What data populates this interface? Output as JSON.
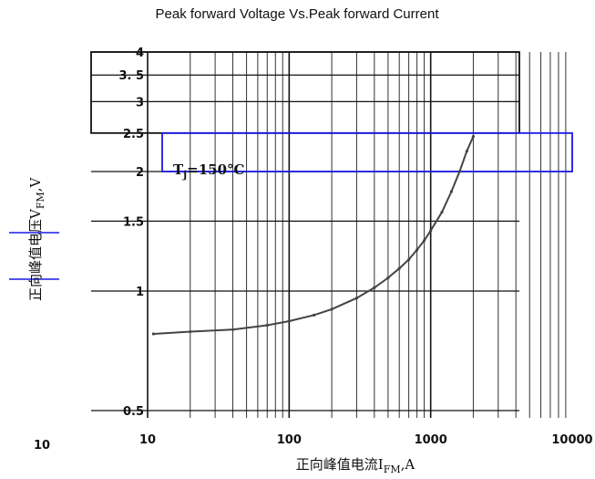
{
  "chart_data": {
    "type": "line",
    "title": "Peak forward Voltage Vs.Peak forward Current",
    "xlabel": "正向峰值电流I",
    "xlabel_sub": "FM",
    "xlabel_unit": ",A",
    "ylabel": "正向峰值电压V",
    "ylabel_sub": "FM",
    "ylabel_unit": ",V",
    "x_scale": "log",
    "y_scale": "log",
    "xlim": [
      10,
      10000
    ],
    "ylim": [
      0.5,
      4
    ],
    "x_ticks": [
      {
        "value": 10,
        "label": "10"
      },
      {
        "value": 100,
        "label": "100"
      },
      {
        "value": 1000,
        "label": "1000"
      },
      {
        "value": 10000,
        "label": "10000"
      }
    ],
    "x_tick_extra": {
      "label": "10"
    },
    "y_ticks": [
      {
        "value": 0.5,
        "label": "0.5"
      },
      {
        "value": 1,
        "label": "1"
      },
      {
        "value": 1.5,
        "label": "1.5"
      },
      {
        "value": 2,
        "label": "2"
      },
      {
        "value": 2.5,
        "label": "2.5"
      },
      {
        "value": 3,
        "label": "3"
      },
      {
        "value": 3.5,
        "label": "3. 5"
      },
      {
        "value": 4,
        "label": "4"
      }
    ],
    "grid": true,
    "annotation": "T",
    "annotation_sub": "j",
    "annotation_rest": "=150°C",
    "series": [
      {
        "color": "#444444",
        "x": [
          11,
          20,
          40,
          70,
          100,
          150,
          200,
          300,
          400,
          500,
          600,
          700,
          800,
          900,
          1000,
          1200,
          1400,
          1600,
          1800,
          2000
        ],
        "y": [
          0.78,
          0.79,
          0.8,
          0.82,
          0.84,
          0.87,
          0.9,
          0.96,
          1.02,
          1.08,
          1.14,
          1.2,
          1.27,
          1.34,
          1.42,
          1.58,
          1.78,
          2.0,
          2.25,
          2.45
        ]
      }
    ]
  }
}
